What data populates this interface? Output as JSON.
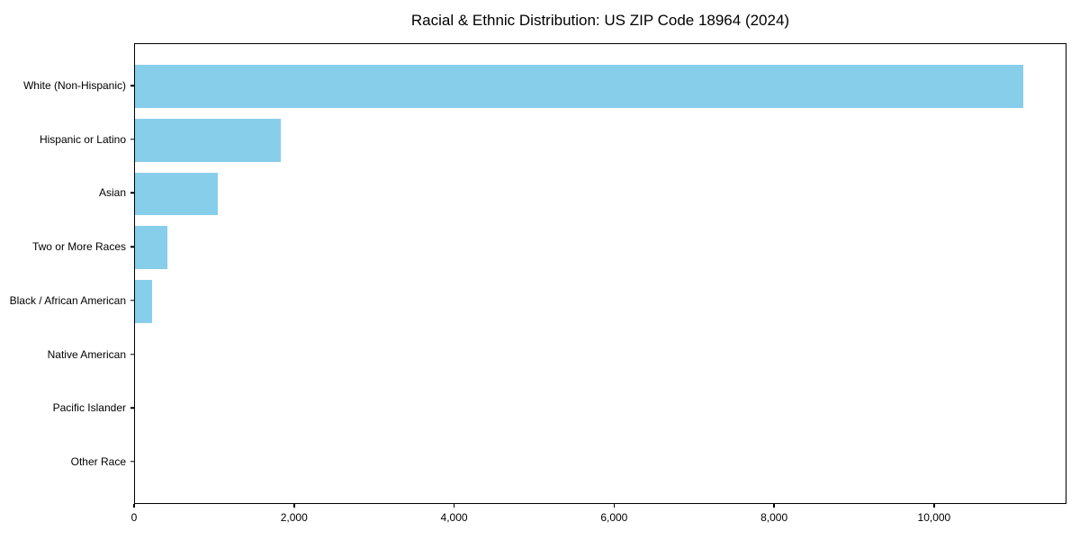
{
  "chart_data": {
    "type": "bar",
    "orientation": "horizontal",
    "title": "Racial & Ethnic Distribution: US ZIP Code 18964 (2024)",
    "categories": [
      "White (Non-Hispanic)",
      "Hispanic or Latino",
      "Asian",
      "Two or More Races",
      "Black / African American",
      "Native American",
      "Pacific Islander",
      "Other Race"
    ],
    "values": [
      11100,
      1820,
      1030,
      405,
      215,
      0,
      0,
      0
    ],
    "xlabel": "",
    "ylabel": "",
    "xlim": [
      0,
      11655
    ],
    "x_ticks": [
      0,
      2000,
      4000,
      6000,
      8000,
      10000
    ],
    "x_tick_labels": [
      "0",
      "2,000",
      "4,000",
      "6,000",
      "8,000",
      "10,000"
    ],
    "bar_color": "#87CEEB",
    "text_color": "#000000",
    "grid": false,
    "legend": "none"
  }
}
